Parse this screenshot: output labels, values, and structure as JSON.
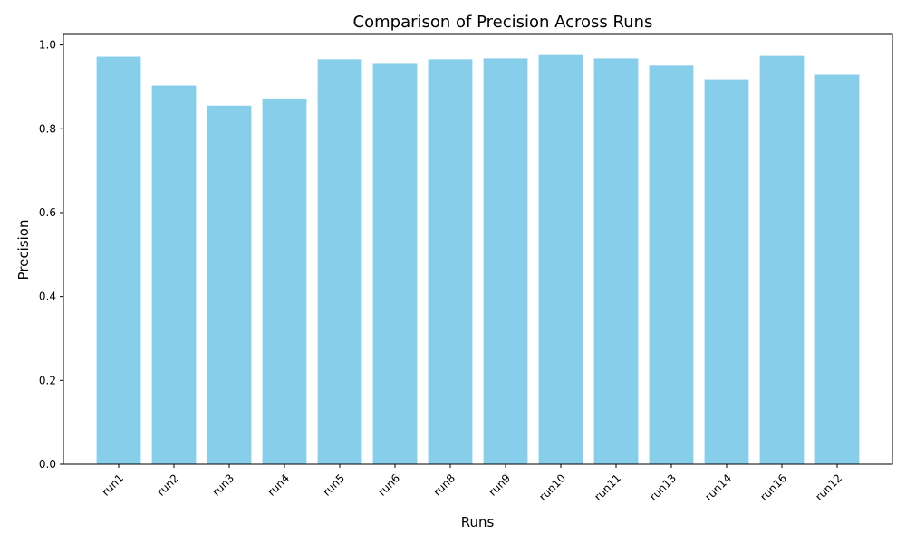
{
  "chart_data": {
    "type": "bar",
    "title": "Comparison of Precision Across Runs",
    "xlabel": "Runs",
    "ylabel": "Precision",
    "categories": [
      "run1",
      "run2",
      "run3",
      "run4",
      "run5",
      "run6",
      "run8",
      "run9",
      "run10",
      "run11",
      "run13",
      "run14",
      "run16",
      "run12"
    ],
    "values": [
      0.972,
      0.903,
      0.855,
      0.872,
      0.966,
      0.955,
      0.966,
      0.968,
      0.976,
      0.968,
      0.951,
      0.918,
      0.974,
      0.929
    ],
    "ylim": [
      0,
      1.025
    ],
    "yticks": [
      0.0,
      0.2,
      0.4,
      0.6,
      0.8,
      1.0
    ],
    "ytick_labels": [
      "0.0",
      "0.2",
      "0.4",
      "0.6",
      "0.8",
      "1.0"
    ],
    "bar_color": "#87CEEB",
    "grid": false,
    "legend": "none"
  }
}
